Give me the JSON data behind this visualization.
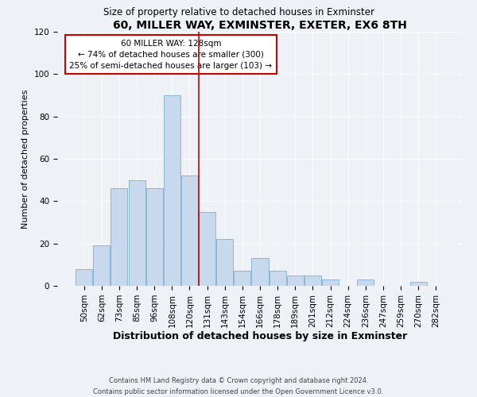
{
  "title": "60, MILLER WAY, EXMINSTER, EXETER, EX6 8TH",
  "subtitle": "Size of property relative to detached houses in Exminster",
  "xlabel": "Distribution of detached houses by size in Exminster",
  "ylabel": "Number of detached properties",
  "bar_labels": [
    "50sqm",
    "62sqm",
    "73sqm",
    "85sqm",
    "96sqm",
    "108sqm",
    "120sqm",
    "131sqm",
    "143sqm",
    "154sqm",
    "166sqm",
    "178sqm",
    "189sqm",
    "201sqm",
    "212sqm",
    "224sqm",
    "236sqm",
    "247sqm",
    "259sqm",
    "270sqm",
    "282sqm"
  ],
  "bar_values": [
    8,
    19,
    46,
    50,
    46,
    90,
    52,
    35,
    22,
    7,
    13,
    7,
    5,
    5,
    3,
    0,
    3,
    0,
    0,
    2,
    0
  ],
  "bar_color": "#c8d8ed",
  "bar_edge_color": "#7fafd4",
  "vline_color": "#cc0000",
  "annotation_title": "60 MILLER WAY: 128sqm",
  "annotation_line1": "← 74% of detached houses are smaller (300)",
  "annotation_line2": "25% of semi-detached houses are larger (103) →",
  "annotation_box_facecolor": "#ffffff",
  "annotation_box_edgecolor": "#cc0000",
  "ylim": [
    0,
    120
  ],
  "yticks": [
    0,
    20,
    40,
    60,
    80,
    100,
    120
  ],
  "footnote1": "Contains HM Land Registry data © Crown copyright and database right 2024.",
  "footnote2": "Contains public sector information licensed under the Open Government Licence v3.0.",
  "background_color": "#eef2f7",
  "plot_background": "#eef2f7",
  "grid_color": "#ffffff",
  "title_fontsize": 10,
  "subtitle_fontsize": 8.5,
  "xlabel_fontsize": 9,
  "ylabel_fontsize": 8,
  "tick_fontsize": 7.5,
  "annotation_fontsize": 7.5,
  "footnote_fontsize": 6
}
